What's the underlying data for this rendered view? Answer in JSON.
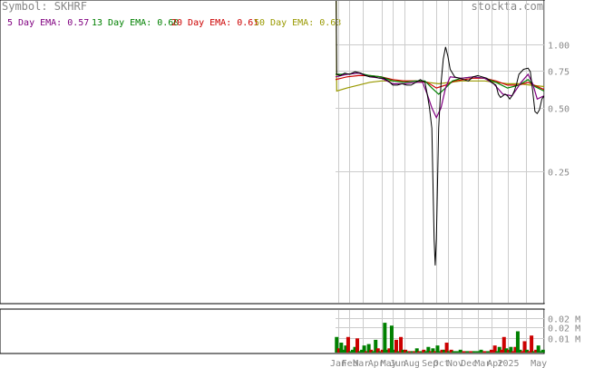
{
  "header": {
    "symbol_label": "Symbol: SKHRF",
    "site": "stockta.com"
  },
  "legend": [
    {
      "label": "5 Day EMA: 0.57",
      "color": "#800080"
    },
    {
      "label": "13 Day EMA: 0.60",
      "color": "#008000"
    },
    {
      "label": "20 Day EMA: 0.61",
      "color": "#cc0000"
    },
    {
      "label": "50 Day EMA: 0.63",
      "color": "#999900"
    }
  ],
  "chart_data": [
    {
      "type": "line",
      "title": "Symbol: SKHRF",
      "yscale": "log",
      "ylim": [
        0.06,
        1.6
      ],
      "yticks": [
        "1.00",
        "0.75",
        "0.50",
        "0.25"
      ],
      "ytick_values": [
        1.0,
        0.75,
        0.5,
        0.25
      ],
      "x_labels": [
        "Jan",
        "Feb",
        "Mar",
        "Apr",
        "May",
        "Jun",
        "Aug",
        "Sep",
        "Oct",
        "Nov",
        "Dec",
        "Mar",
        "Apr",
        "2025",
        "May"
      ],
      "price_points": [
        [
          0,
          5.0
        ],
        [
          1,
          0.72
        ],
        [
          4,
          0.71
        ],
        [
          8,
          0.73
        ],
        [
          12,
          0.72
        ],
        [
          17,
          0.74
        ],
        [
          22,
          0.73
        ],
        [
          26,
          0.71
        ],
        [
          30,
          0.7
        ],
        [
          34,
          0.7
        ],
        [
          38,
          0.69
        ],
        [
          42,
          0.69
        ],
        [
          46,
          0.67
        ],
        [
          50,
          0.64
        ],
        [
          54,
          0.64
        ],
        [
          58,
          0.65
        ],
        [
          62,
          0.64
        ],
        [
          66,
          0.64
        ],
        [
          70,
          0.66
        ],
        [
          74,
          0.68
        ],
        [
          78,
          0.66
        ],
        [
          80,
          0.58
        ],
        [
          82,
          0.5
        ],
        [
          84,
          0.4
        ],
        [
          86,
          0.12
        ],
        [
          87,
          0.09
        ],
        [
          88,
          0.12
        ],
        [
          90,
          0.4
        ],
        [
          92,
          0.65
        ],
        [
          94,
          0.85
        ],
        [
          96,
          0.97
        ],
        [
          98,
          0.88
        ],
        [
          100,
          0.76
        ],
        [
          104,
          0.7
        ],
        [
          108,
          0.69
        ],
        [
          112,
          0.68
        ],
        [
          116,
          0.67
        ],
        [
          120,
          0.7
        ],
        [
          124,
          0.71
        ],
        [
          128,
          0.7
        ],
        [
          132,
          0.69
        ],
        [
          136,
          0.66
        ],
        [
          140,
          0.64
        ],
        [
          142,
          0.58
        ],
        [
          144,
          0.56
        ],
        [
          146,
          0.57
        ],
        [
          148,
          0.58
        ],
        [
          150,
          0.57
        ],
        [
          152,
          0.55
        ],
        [
          154,
          0.57
        ],
        [
          156,
          0.6
        ],
        [
          158,
          0.65
        ],
        [
          160,
          0.72
        ],
        [
          164,
          0.76
        ],
        [
          168,
          0.77
        ],
        [
          170,
          0.74
        ],
        [
          172,
          0.6
        ],
        [
          174,
          0.48
        ],
        [
          176,
          0.47
        ],
        [
          178,
          0.49
        ],
        [
          180,
          0.55
        ],
        [
          182,
          0.57
        ]
      ],
      "series": [
        {
          "name": "5 Day EMA",
          "color": "#800080",
          "points": [
            [
              0,
              0.7
            ],
            [
              10,
              0.72
            ],
            [
              20,
              0.73
            ],
            [
              30,
              0.7
            ],
            [
              40,
              0.69
            ],
            [
              50,
              0.65
            ],
            [
              60,
              0.65
            ],
            [
              70,
              0.66
            ],
            [
              76,
              0.66
            ],
            [
              80,
              0.58
            ],
            [
              84,
              0.5
            ],
            [
              88,
              0.45
            ],
            [
              92,
              0.5
            ],
            [
              96,
              0.62
            ],
            [
              100,
              0.7
            ],
            [
              110,
              0.69
            ],
            [
              120,
              0.7
            ],
            [
              130,
              0.69
            ],
            [
              138,
              0.65
            ],
            [
              146,
              0.58
            ],
            [
              154,
              0.57
            ],
            [
              162,
              0.66
            ],
            [
              168,
              0.72
            ],
            [
              172,
              0.65
            ],
            [
              176,
              0.55
            ],
            [
              182,
              0.57
            ]
          ]
        },
        {
          "name": "13 Day EMA",
          "color": "#008000",
          "points": [
            [
              0,
              0.72
            ],
            [
              10,
              0.72
            ],
            [
              20,
              0.73
            ],
            [
              30,
              0.71
            ],
            [
              40,
              0.7
            ],
            [
              50,
              0.67
            ],
            [
              60,
              0.66
            ],
            [
              70,
              0.67
            ],
            [
              78,
              0.67
            ],
            [
              84,
              0.62
            ],
            [
              90,
              0.58
            ],
            [
              96,
              0.62
            ],
            [
              102,
              0.67
            ],
            [
              110,
              0.69
            ],
            [
              120,
              0.7
            ],
            [
              130,
              0.69
            ],
            [
              140,
              0.66
            ],
            [
              150,
              0.62
            ],
            [
              160,
              0.64
            ],
            [
              168,
              0.68
            ],
            [
              174,
              0.63
            ],
            [
              182,
              0.6
            ]
          ]
        },
        {
          "name": "20 Day EMA",
          "color": "#cc0000",
          "points": [
            [
              0,
              0.68
            ],
            [
              10,
              0.7
            ],
            [
              20,
              0.71
            ],
            [
              30,
              0.71
            ],
            [
              40,
              0.7
            ],
            [
              50,
              0.68
            ],
            [
              60,
              0.67
            ],
            [
              70,
              0.67
            ],
            [
              80,
              0.66
            ],
            [
              88,
              0.62
            ],
            [
              96,
              0.64
            ],
            [
              104,
              0.67
            ],
            [
              112,
              0.68
            ],
            [
              120,
              0.69
            ],
            [
              130,
              0.69
            ],
            [
              140,
              0.67
            ],
            [
              150,
              0.64
            ],
            [
              160,
              0.64
            ],
            [
              168,
              0.66
            ],
            [
              176,
              0.63
            ],
            [
              182,
              0.61
            ]
          ]
        },
        {
          "name": "50 Day EMA",
          "color": "#999900",
          "points": [
            [
              0,
              5.0
            ],
            [
              1,
              0.6
            ],
            [
              10,
              0.62
            ],
            [
              20,
              0.64
            ],
            [
              30,
              0.66
            ],
            [
              40,
              0.67
            ],
            [
              50,
              0.67
            ],
            [
              60,
              0.67
            ],
            [
              70,
              0.67
            ],
            [
              80,
              0.66
            ],
            [
              90,
              0.65
            ],
            [
              100,
              0.66
            ],
            [
              110,
              0.67
            ],
            [
              120,
              0.67
            ],
            [
              130,
              0.67
            ],
            [
              140,
              0.66
            ],
            [
              150,
              0.65
            ],
            [
              160,
              0.65
            ],
            [
              170,
              0.64
            ],
            [
              182,
              0.63
            ]
          ]
        }
      ]
    },
    {
      "type": "bar",
      "ylim": [
        0,
        0.03
      ],
      "yticks": [
        "0.02 M",
        "0.02 M",
        "0.01 M"
      ],
      "ytick_values": [
        0.024,
        0.018,
        0.01
      ],
      "bars": [
        {
          "x": 1,
          "v": 0.011,
          "color": "#008000"
        },
        {
          "x": 3,
          "v": 0.003,
          "color": "#cc0000"
        },
        {
          "x": 5,
          "v": 0.007,
          "color": "#008000"
        },
        {
          "x": 7,
          "v": 0.002,
          "color": "#008000"
        },
        {
          "x": 9,
          "v": 0.005,
          "color": "#008000"
        },
        {
          "x": 11,
          "v": 0.011,
          "color": "#cc0000"
        },
        {
          "x": 13,
          "v": 0.001,
          "color": "#008000"
        },
        {
          "x": 15,
          "v": 0.002,
          "color": "#008000"
        },
        {
          "x": 17,
          "v": 0.004,
          "color": "#008000"
        },
        {
          "x": 19,
          "v": 0.01,
          "color": "#cc0000"
        },
        {
          "x": 21,
          "v": 0.001,
          "color": "#008000"
        },
        {
          "x": 23,
          "v": 0.002,
          "color": "#008000"
        },
        {
          "x": 25,
          "v": 0.005,
          "color": "#008000"
        },
        {
          "x": 27,
          "v": 0.001,
          "color": "#cc0000"
        },
        {
          "x": 29,
          "v": 0.006,
          "color": "#008000"
        },
        {
          "x": 31,
          "v": 0.002,
          "color": "#cc0000"
        },
        {
          "x": 33,
          "v": 0.001,
          "color": "#008000"
        },
        {
          "x": 35,
          "v": 0.009,
          "color": "#008000"
        },
        {
          "x": 37,
          "v": 0.003,
          "color": "#cc0000"
        },
        {
          "x": 39,
          "v": 0.001,
          "color": "#008000"
        },
        {
          "x": 41,
          "v": 0.002,
          "color": "#cc0000"
        },
        {
          "x": 43,
          "v": 0.021,
          "color": "#008000"
        },
        {
          "x": 45,
          "v": 0.002,
          "color": "#008000"
        },
        {
          "x": 47,
          "v": 0.003,
          "color": "#cc0000"
        },
        {
          "x": 49,
          "v": 0.019,
          "color": "#008000"
        },
        {
          "x": 51,
          "v": 0.002,
          "color": "#008000"
        },
        {
          "x": 53,
          "v": 0.009,
          "color": "#cc0000"
        },
        {
          "x": 55,
          "v": 0.001,
          "color": "#008000"
        },
        {
          "x": 57,
          "v": 0.011,
          "color": "#cc0000"
        },
        {
          "x": 59,
          "v": 0.002,
          "color": "#008000"
        },
        {
          "x": 61,
          "v": 0.002,
          "color": "#cc0000"
        },
        {
          "x": 63,
          "v": 0.001,
          "color": "#008000"
        },
        {
          "x": 65,
          "v": 0.001,
          "color": "#cc0000"
        },
        {
          "x": 67,
          "v": 0.001,
          "color": "#008000"
        },
        {
          "x": 69,
          "v": 0.001,
          "color": "#cc0000"
        },
        {
          "x": 71,
          "v": 0.003,
          "color": "#008000"
        },
        {
          "x": 73,
          "v": 0.001,
          "color": "#cc0000"
        },
        {
          "x": 75,
          "v": 0.001,
          "color": "#008000"
        },
        {
          "x": 77,
          "v": 0.002,
          "color": "#cc0000"
        },
        {
          "x": 79,
          "v": 0.001,
          "color": "#008000"
        },
        {
          "x": 81,
          "v": 0.004,
          "color": "#008000"
        },
        {
          "x": 83,
          "v": 0.001,
          "color": "#cc0000"
        },
        {
          "x": 85,
          "v": 0.003,
          "color": "#008000"
        },
        {
          "x": 87,
          "v": 0.001,
          "color": "#cc0000"
        },
        {
          "x": 89,
          "v": 0.005,
          "color": "#008000"
        },
        {
          "x": 91,
          "v": 0.001,
          "color": "#008000"
        },
        {
          "x": 93,
          "v": 0.002,
          "color": "#cc0000"
        },
        {
          "x": 95,
          "v": 0.002,
          "color": "#008000"
        },
        {
          "x": 97,
          "v": 0.007,
          "color": "#cc0000"
        },
        {
          "x": 99,
          "v": 0.001,
          "color": "#008000"
        },
        {
          "x": 101,
          "v": 0.002,
          "color": "#cc0000"
        },
        {
          "x": 103,
          "v": 0.001,
          "color": "#008000"
        },
        {
          "x": 106,
          "v": 0.001,
          "color": "#008000"
        },
        {
          "x": 109,
          "v": 0.002,
          "color": "#008000"
        },
        {
          "x": 112,
          "v": 0.001,
          "color": "#cc0000"
        },
        {
          "x": 115,
          "v": 0.001,
          "color": "#008000"
        },
        {
          "x": 118,
          "v": 0.001,
          "color": "#cc0000"
        },
        {
          "x": 121,
          "v": 0.001,
          "color": "#008000"
        },
        {
          "x": 124,
          "v": 0.001,
          "color": "#008000"
        },
        {
          "x": 127,
          "v": 0.002,
          "color": "#008000"
        },
        {
          "x": 130,
          "v": 0.001,
          "color": "#cc0000"
        },
        {
          "x": 133,
          "v": 0.001,
          "color": "#008000"
        },
        {
          "x": 136,
          "v": 0.002,
          "color": "#cc0000"
        },
        {
          "x": 139,
          "v": 0.005,
          "color": "#cc0000"
        },
        {
          "x": 141,
          "v": 0.001,
          "color": "#008000"
        },
        {
          "x": 143,
          "v": 0.004,
          "color": "#008000"
        },
        {
          "x": 145,
          "v": 0.002,
          "color": "#cc0000"
        },
        {
          "x": 147,
          "v": 0.011,
          "color": "#cc0000"
        },
        {
          "x": 149,
          "v": 0.003,
          "color": "#008000"
        },
        {
          "x": 151,
          "v": 0.002,
          "color": "#cc0000"
        },
        {
          "x": 153,
          "v": 0.004,
          "color": "#008000"
        },
        {
          "x": 155,
          "v": 0.001,
          "color": "#cc0000"
        },
        {
          "x": 157,
          "v": 0.004,
          "color": "#cc0000"
        },
        {
          "x": 159,
          "v": 0.015,
          "color": "#008000"
        },
        {
          "x": 161,
          "v": 0.002,
          "color": "#008000"
        },
        {
          "x": 163,
          "v": 0.001,
          "color": "#cc0000"
        },
        {
          "x": 165,
          "v": 0.008,
          "color": "#cc0000"
        },
        {
          "x": 167,
          "v": 0.002,
          "color": "#008000"
        },
        {
          "x": 169,
          "v": 0.001,
          "color": "#cc0000"
        },
        {
          "x": 171,
          "v": 0.012,
          "color": "#cc0000"
        },
        {
          "x": 173,
          "v": 0.001,
          "color": "#008000"
        },
        {
          "x": 175,
          "v": 0.002,
          "color": "#cc0000"
        },
        {
          "x": 177,
          "v": 0.005,
          "color": "#008000"
        },
        {
          "x": 179,
          "v": 0.001,
          "color": "#008000"
        },
        {
          "x": 181,
          "v": 0.002,
          "color": "#008000"
        }
      ]
    }
  ]
}
